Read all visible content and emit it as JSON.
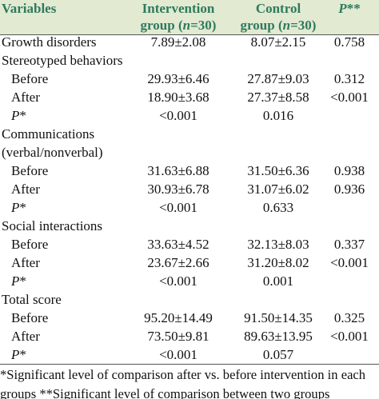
{
  "table": {
    "header": [
      [
        {
          "text": "Variables"
        }
      ],
      [
        {
          "text": "Intervention"
        },
        {
          "text": "group ("
        },
        {
          "text": "n",
          "italic": true
        },
        {
          "text": "=30)"
        }
      ],
      [
        {
          "text": "Control"
        },
        {
          "text": "group ("
        },
        {
          "text": "n",
          "italic": true
        },
        {
          "text": "=30)"
        }
      ],
      [
        {
          "text": "P",
          "italic": true
        },
        {
          "text": "**"
        }
      ]
    ],
    "rows": [
      {
        "label": "Growth disorders",
        "intervention": "7.89±2.08",
        "control": "8.07±2.15",
        "p": "0.758"
      },
      {
        "label": "Stereotyped behaviors",
        "sub": [
          {
            "label": "Before",
            "intervention": "29.93±6.46",
            "control": "27.87±9.03",
            "p": "0.312"
          },
          {
            "label": "After",
            "intervention": "18.90±3.68",
            "control": "27.37±8.58",
            "p": "<0.001"
          },
          {
            "label": [
              {
                "text": "P",
                "italic": true
              },
              {
                "text": "*"
              }
            ],
            "intervention": "<0.001",
            "control": "0.016"
          }
        ]
      },
      {
        "label": "Communications (verbal/nonverbal)",
        "sub": [
          {
            "label": "Before",
            "intervention": "31.63±6.88",
            "control": "31.50±6.36",
            "p": "0.938"
          },
          {
            "label": "After",
            "intervention": "30.93±6.78",
            "control": "31.07±6.02",
            "p": "0.936"
          },
          {
            "label": [
              {
                "text": "P",
                "italic": true
              },
              {
                "text": "*"
              }
            ],
            "intervention": "<0.001",
            "control": "0.633"
          }
        ]
      },
      {
        "label": "Social interactions",
        "sub": [
          {
            "label": "Before",
            "intervention": "33.63±4.52",
            "control": "32.13±8.03",
            "p": "0.337"
          },
          {
            "label": "After",
            "intervention": "23.67±2.66",
            "control": "31.20±8.02",
            "p": "<0.001"
          },
          {
            "label": [
              {
                "text": "P",
                "italic": true
              },
              {
                "text": "*"
              }
            ],
            "intervention": "<0.001",
            "control": "0.001"
          }
        ]
      },
      {
        "label": "Total score",
        "sub": [
          {
            "label": "Before",
            "intervention": "95.20±14.49",
            "control": "91.50±14.35",
            "p": "0.325"
          },
          {
            "label": "After",
            "intervention": "73.50±9.81",
            "control": "89.63±13.95",
            "p": "<0.001"
          },
          {
            "label": [
              {
                "text": "P",
                "italic": true
              },
              {
                "text": "*"
              }
            ],
            "intervention": "<0.001",
            "control": "0.057"
          }
        ]
      }
    ],
    "footnote": "*Significant level of comparison after vs. before intervention in each groups **Significant level of comparison between two groups"
  }
}
